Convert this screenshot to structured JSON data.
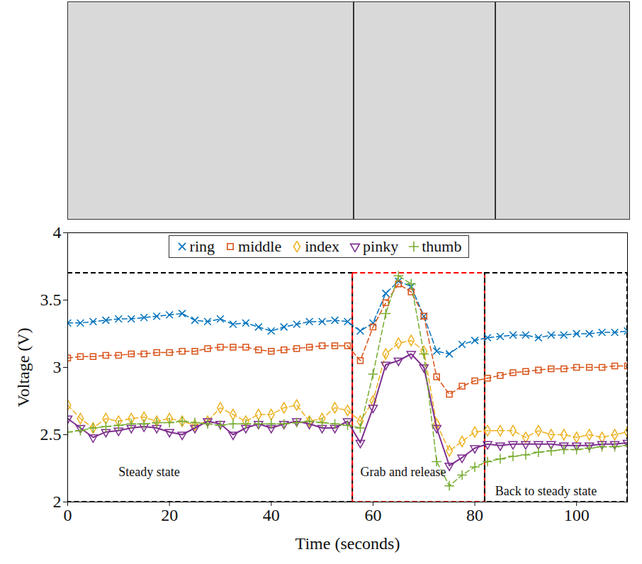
{
  "chart_data": {
    "type": "line",
    "x_label": "Time (seconds)",
    "y_label": "Voltage (V)",
    "xlim": [
      0,
      110
    ],
    "xticks": [
      0,
      20,
      40,
      60,
      80,
      100
    ],
    "ylim": [
      2,
      4
    ],
    "yticks": [
      2,
      2.5,
      3,
      3.5,
      4
    ],
    "grid": false,
    "legend": "top",
    "x": [
      0,
      2.5,
      5,
      7.5,
      10,
      12.5,
      15,
      17.5,
      20,
      22.5,
      25,
      27.5,
      30,
      32.5,
      35,
      37.5,
      40,
      42.5,
      45,
      47.5,
      50,
      52.5,
      55,
      57.5,
      60,
      62.5,
      65,
      67.5,
      70,
      72.5,
      75,
      77.5,
      80,
      82.5,
      85,
      87.5,
      90,
      92.5,
      95,
      97.5,
      100,
      102.5,
      105,
      107.5,
      110
    ],
    "series": [
      {
        "name": "ring",
        "color": "#0072BD",
        "marker": "x",
        "line_style": "dashed",
        "values": [
          3.33,
          3.33,
          3.34,
          3.35,
          3.36,
          3.36,
          3.37,
          3.38,
          3.39,
          3.4,
          3.35,
          3.34,
          3.36,
          3.32,
          3.33,
          3.3,
          3.27,
          3.3,
          3.32,
          3.34,
          3.34,
          3.35,
          3.34,
          3.27,
          3.33,
          3.55,
          3.64,
          3.6,
          3.38,
          3.12,
          3.1,
          3.17,
          3.2,
          3.22,
          3.23,
          3.24,
          3.24,
          3.22,
          3.24,
          3.24,
          3.25,
          3.25,
          3.26,
          3.26,
          3.27
        ]
      },
      {
        "name": "middle",
        "color": "#D95319",
        "marker": "square",
        "line_style": "dashed",
        "values": [
          3.07,
          3.08,
          3.08,
          3.09,
          3.09,
          3.1,
          3.1,
          3.11,
          3.11,
          3.12,
          3.12,
          3.14,
          3.15,
          3.15,
          3.15,
          3.13,
          3.12,
          3.13,
          3.14,
          3.15,
          3.16,
          3.16,
          3.16,
          3.05,
          3.3,
          3.48,
          3.62,
          3.56,
          3.38,
          2.93,
          2.8,
          2.86,
          2.9,
          2.92,
          2.94,
          2.96,
          2.97,
          2.98,
          2.99,
          2.99,
          3.0,
          3.0,
          3.0,
          3.01,
          3.01
        ]
      },
      {
        "name": "index",
        "color": "#EDB120",
        "marker": "diamond",
        "line_style": "dashed",
        "values": [
          2.72,
          2.62,
          2.55,
          2.62,
          2.6,
          2.62,
          2.63,
          2.6,
          2.62,
          2.6,
          2.57,
          2.6,
          2.7,
          2.65,
          2.6,
          2.65,
          2.65,
          2.7,
          2.72,
          2.6,
          2.62,
          2.7,
          2.68,
          2.6,
          2.75,
          3.1,
          3.18,
          3.2,
          3.12,
          2.58,
          2.38,
          2.45,
          2.52,
          2.53,
          2.53,
          2.53,
          2.48,
          2.53,
          2.5,
          2.5,
          2.48,
          2.5,
          2.48,
          2.5,
          2.52
        ]
      },
      {
        "name": "pinky",
        "color": "#7E2F8E",
        "marker": "triangle-down",
        "line_style": "solid",
        "values": [
          2.62,
          2.55,
          2.48,
          2.52,
          2.53,
          2.55,
          2.56,
          2.55,
          2.52,
          2.5,
          2.55,
          2.6,
          2.58,
          2.5,
          2.55,
          2.58,
          2.55,
          2.58,
          2.6,
          2.58,
          2.55,
          2.55,
          2.6,
          2.44,
          2.7,
          3.02,
          3.05,
          3.1,
          3.0,
          2.55,
          2.27,
          2.33,
          2.4,
          2.43,
          2.42,
          2.43,
          2.43,
          2.43,
          2.43,
          2.42,
          2.42,
          2.42,
          2.43,
          2.43,
          2.44
        ]
      },
      {
        "name": "thumb",
        "color": "#77AC30",
        "marker": "plus",
        "line_style": "dashed",
        "values": [
          2.52,
          2.53,
          2.55,
          2.56,
          2.57,
          2.58,
          2.58,
          2.59,
          2.59,
          2.6,
          2.59,
          2.58,
          2.57,
          2.58,
          2.58,
          2.58,
          2.58,
          2.58,
          2.59,
          2.6,
          2.59,
          2.58,
          2.57,
          2.55,
          2.95,
          3.4,
          3.68,
          3.62,
          3.1,
          2.3,
          2.12,
          2.2,
          2.26,
          2.3,
          2.32,
          2.34,
          2.35,
          2.37,
          2.38,
          2.39,
          2.39,
          2.4,
          2.41,
          2.41,
          2.42
        ]
      }
    ],
    "regions": [
      {
        "x0": 0,
        "x1": 56,
        "y0": 2,
        "y1": 3.7,
        "color": "#000000",
        "line_style": "dashed"
      },
      {
        "x0": 56,
        "x1": 82,
        "y0": 2,
        "y1": 3.7,
        "color": "#FF0000",
        "line_style": "dashed"
      },
      {
        "x0": 82,
        "x1": 110,
        "y0": 2,
        "y1": 3.7,
        "color": "#000000",
        "line_style": "dashed"
      }
    ],
    "annotations": [
      {
        "text": "Steady state",
        "x": 10,
        "y": 2.22
      },
      {
        "text": "Grab and release",
        "x": 57.5,
        "y": 2.22
      },
      {
        "text": "Back to steady state",
        "x": 84,
        "y": 2.08
      }
    ]
  }
}
